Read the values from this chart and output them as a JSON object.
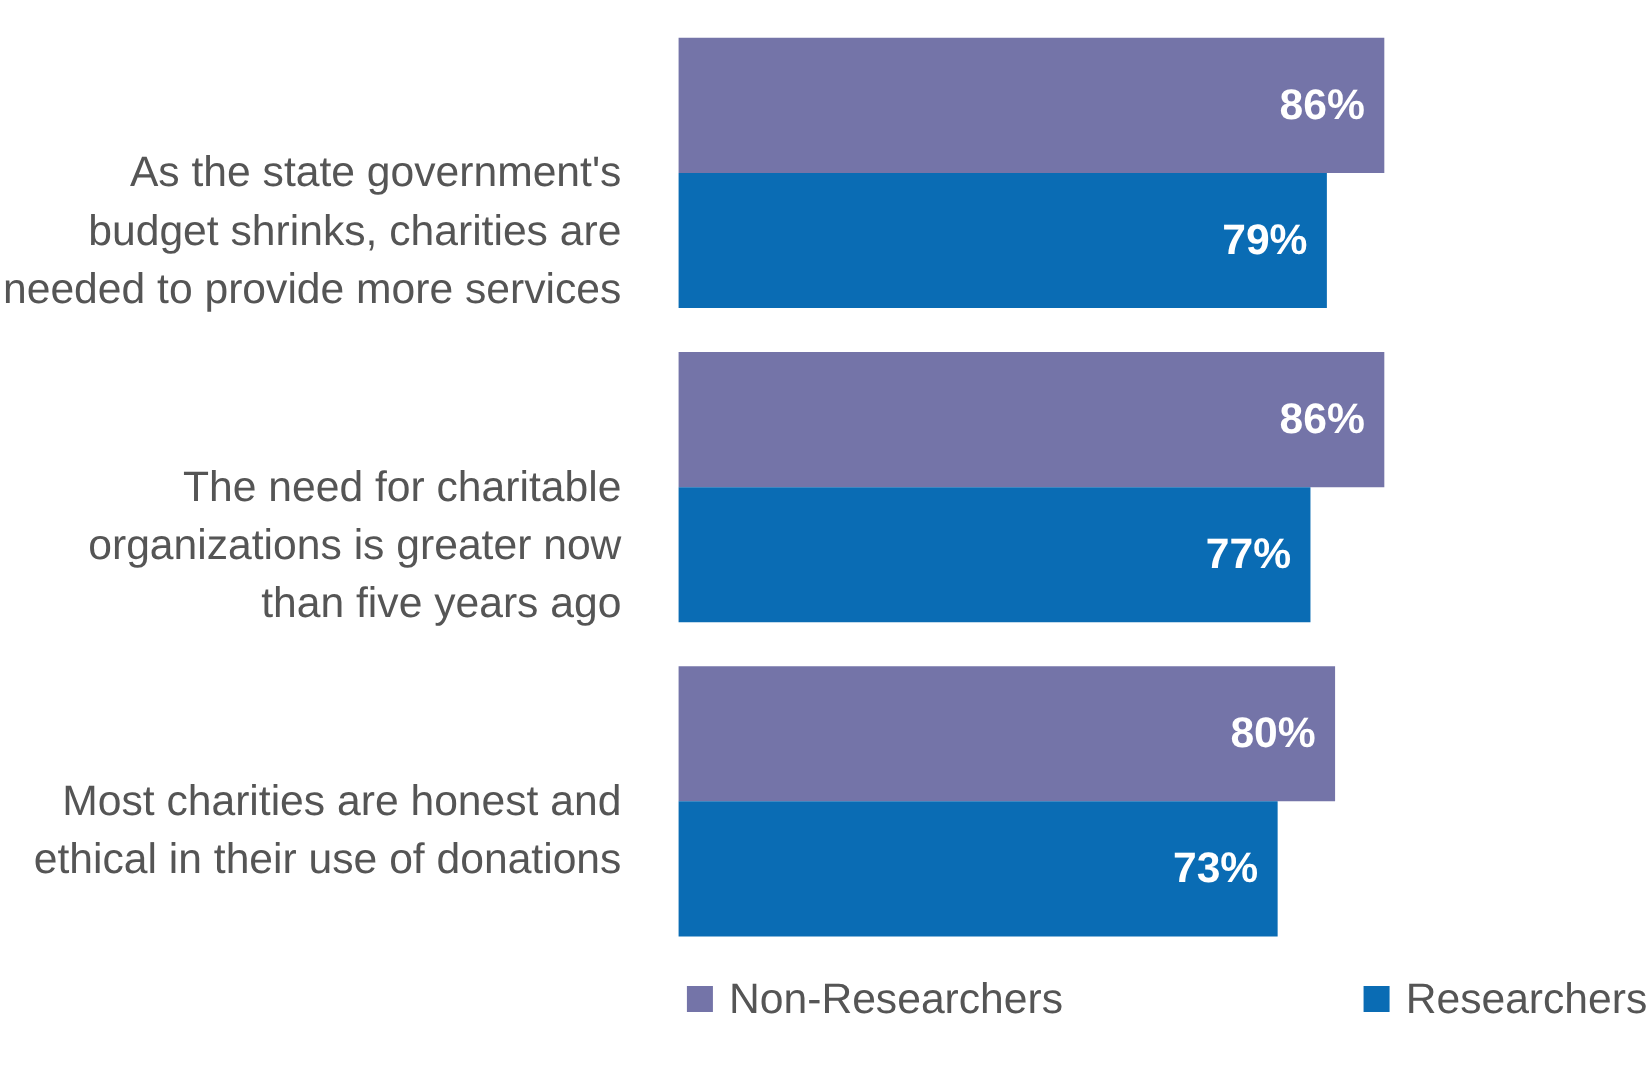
{
  "chart_data": {
    "type": "bar",
    "orientation": "horizontal",
    "categories": [
      "As the state government's\nbudget shrinks, charities are\nneeded to provide more services",
      "The need for charitable\norganizations is greater now\nthan five years ago",
      "Most charities are honest and\nethical in their use of donations"
    ],
    "series": [
      {
        "name": "Non-Researchers",
        "color": "#7474a8",
        "values": [
          86,
          86,
          80
        ],
        "value_labels": [
          "86%",
          "86%",
          "80%"
        ]
      },
      {
        "name": "Researchers",
        "color": "#0a6cb4",
        "values": [
          79,
          77,
          73
        ],
        "value_labels": [
          "79%",
          "77%",
          "73%"
        ]
      }
    ],
    "tick_labels": "y",
    "legend": "bottom"
  }
}
